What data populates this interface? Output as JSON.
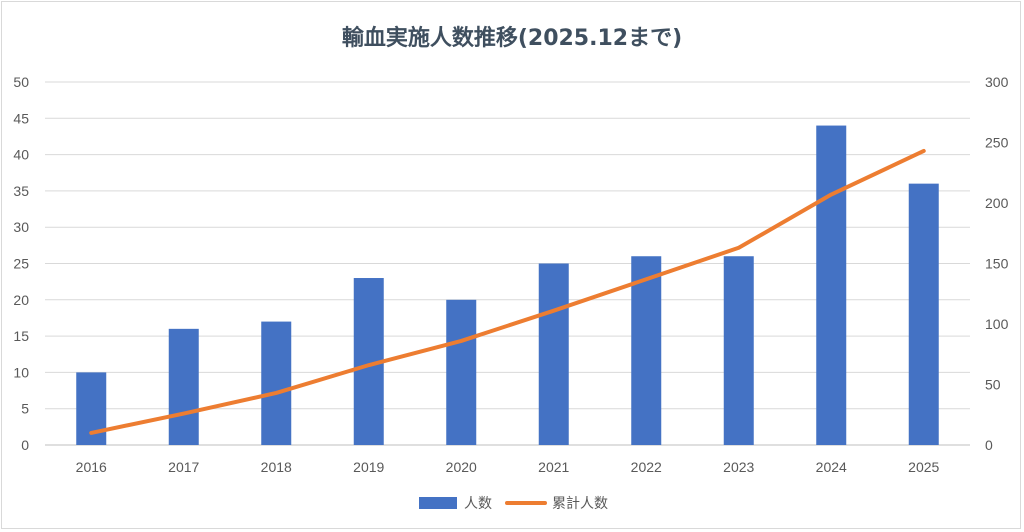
{
  "chart_data": {
    "type": "bar",
    "title": "輸血実施人数推移(2025.12まで)",
    "categories": [
      "2016",
      "2017",
      "2018",
      "2019",
      "2020",
      "2021",
      "2022",
      "2023",
      "2024",
      "2025"
    ],
    "series": [
      {
        "name": "人数",
        "type": "bar",
        "axis": "left",
        "color": "#4472c4",
        "values": [
          10,
          16,
          17,
          23,
          20,
          25,
          26,
          26,
          44,
          36
        ]
      },
      {
        "name": "累計人数",
        "type": "line",
        "axis": "right",
        "color": "#ed7d31",
        "values": [
          10,
          26,
          43,
          66,
          86,
          111,
          137,
          163,
          207,
          243
        ]
      }
    ],
    "ylim": [
      0,
      50
    ],
    "y_ticks": [
      "0",
      "5",
      "10",
      "15",
      "20",
      "25",
      "30",
      "35",
      "40",
      "45",
      "50"
    ],
    "y2lim": [
      0,
      300
    ],
    "y2_ticks": [
      "0",
      "50",
      "100",
      "150",
      "200",
      "250",
      "300"
    ],
    "grid": true,
    "legend": "bottom"
  }
}
